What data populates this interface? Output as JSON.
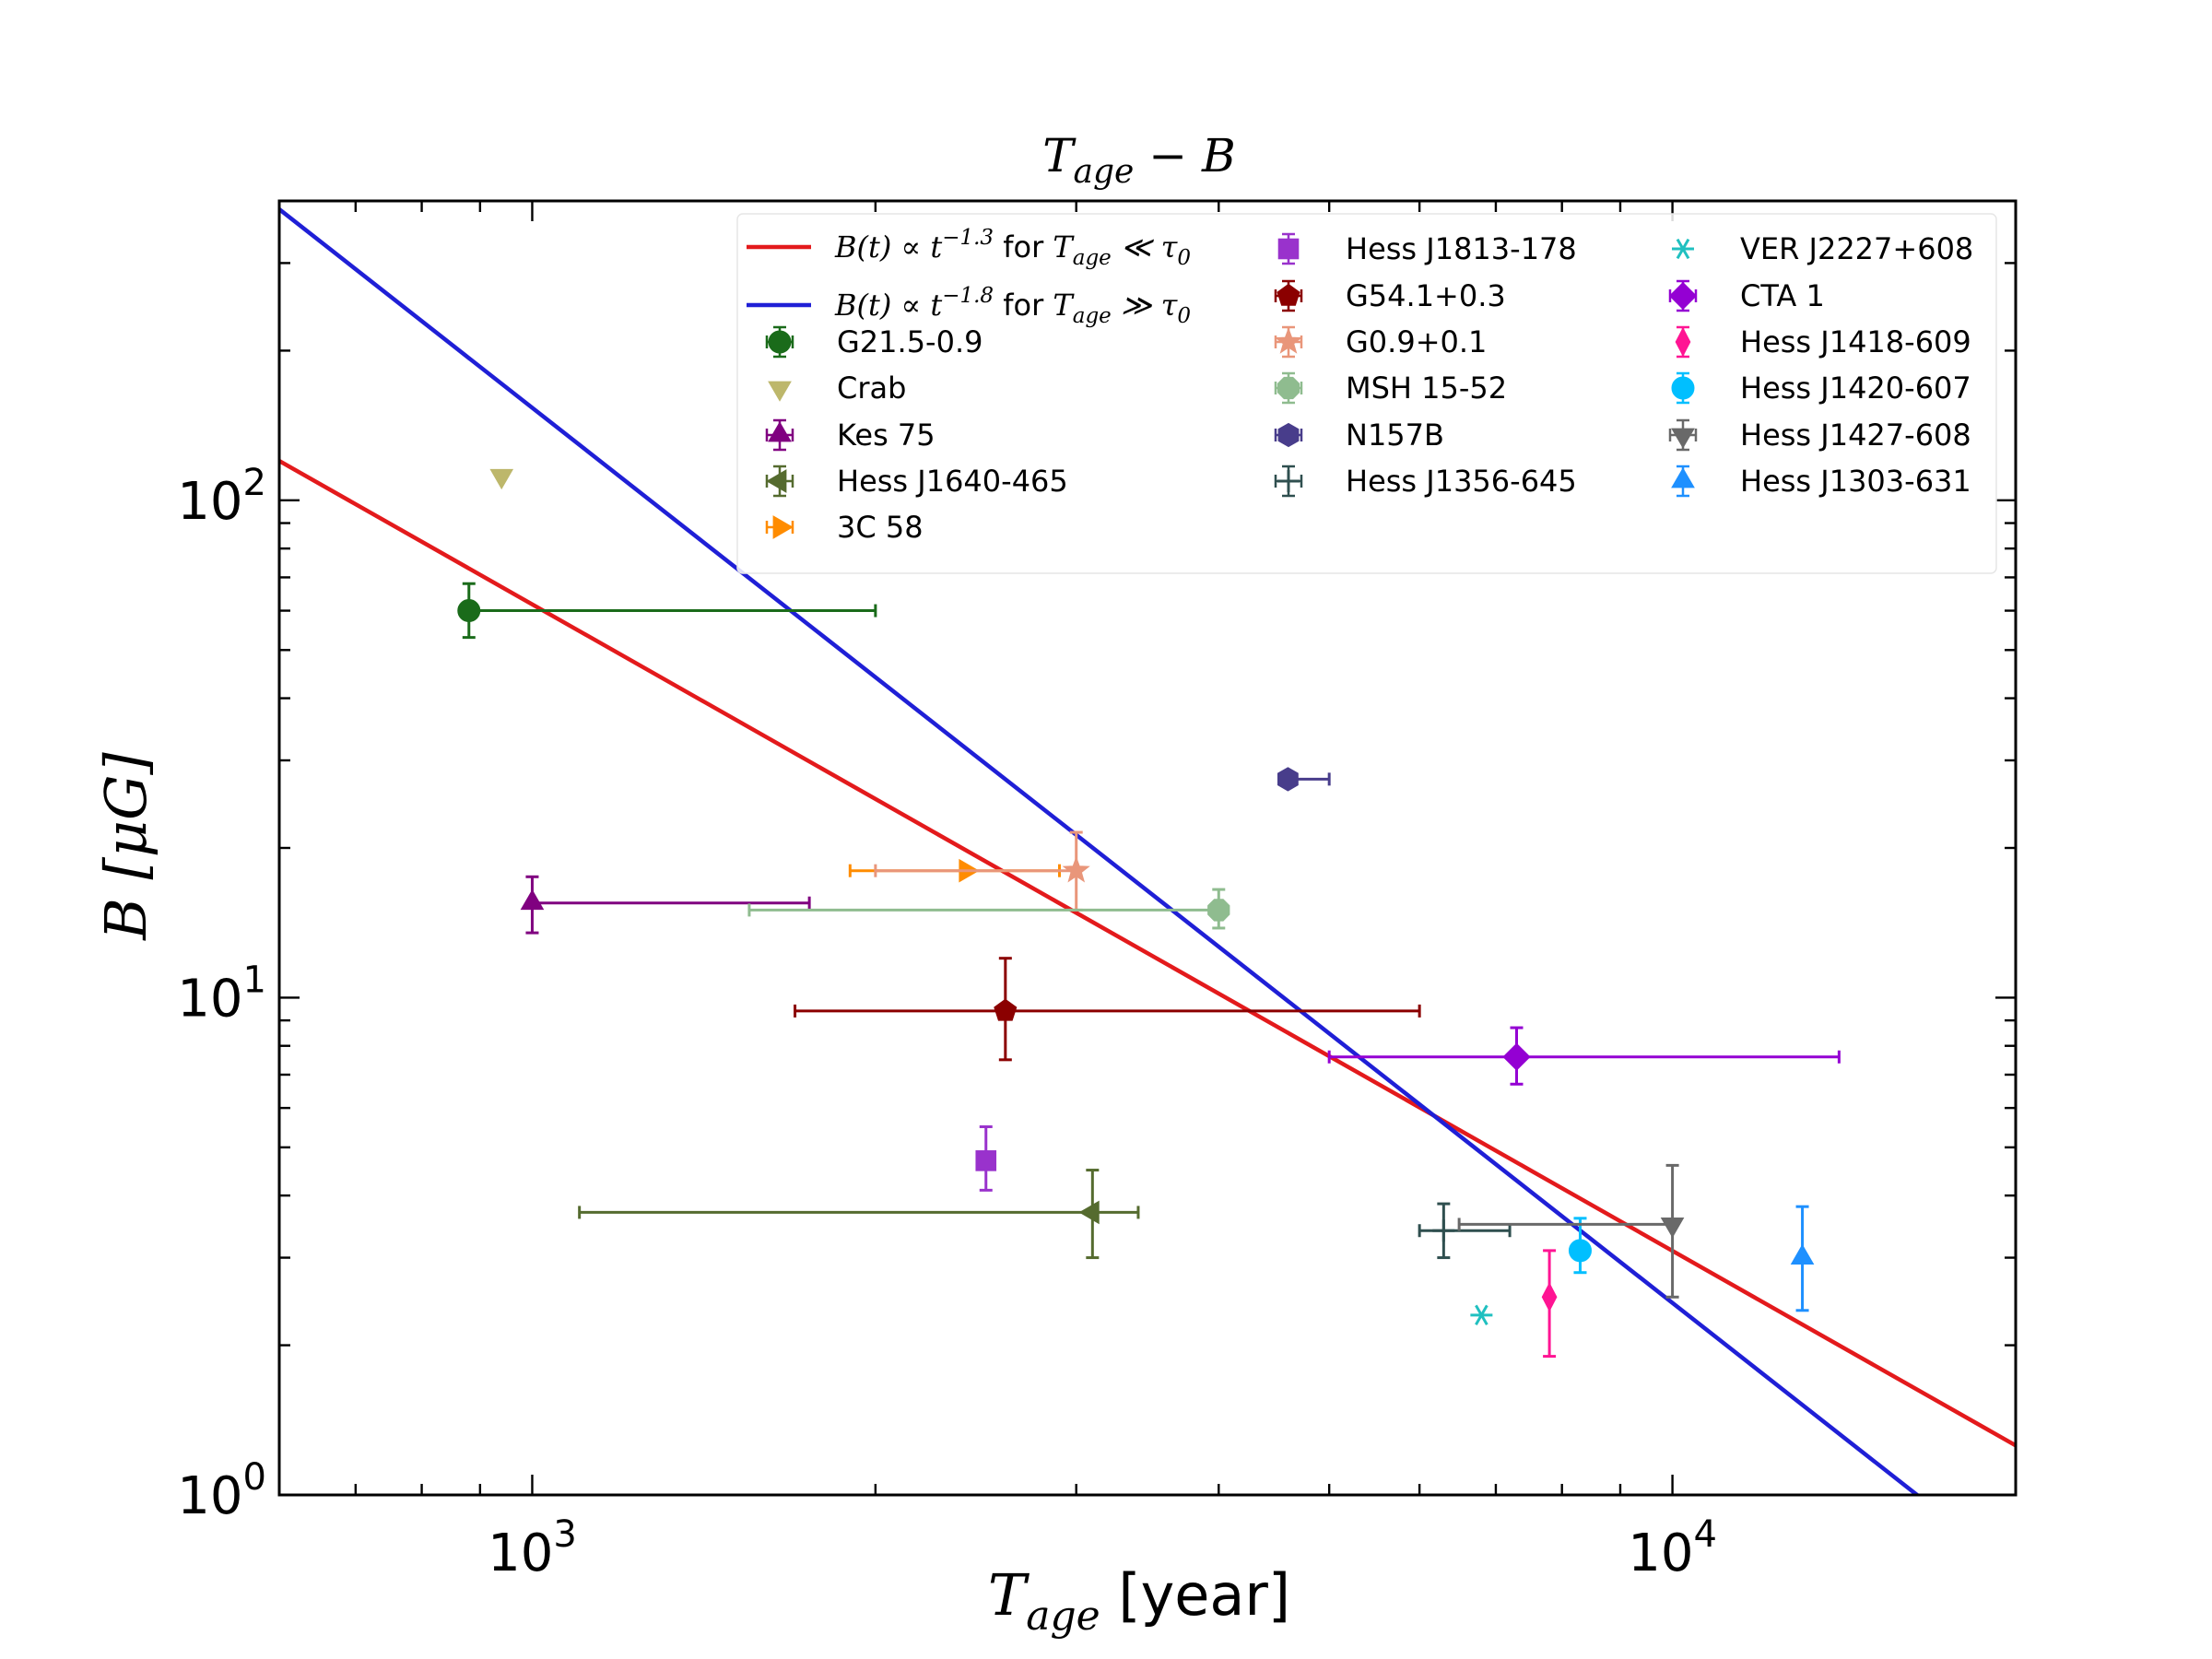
{
  "chart_data": {
    "type": "scatter",
    "title": "T_age − B",
    "title_parts": {
      "var": "T",
      "sub": "age",
      "rest": " − B"
    },
    "xlabel": "T_age [year]",
    "xlabel_parts": {
      "var": "T",
      "sub": "age",
      "rest": " [year]"
    },
    "ylabel": "B [μG]",
    "ylabel_parts": {
      "open": "B [",
      "mu": "μG",
      "close": "]"
    },
    "xscale": "log",
    "yscale": "log",
    "xlim": [
      600,
      20000
    ],
    "ylim": [
      1,
      400
    ],
    "x_ticks": [
      {
        "value": 1000,
        "base": "10",
        "exp": "3"
      },
      {
        "value": 10000,
        "base": "10",
        "exp": "4"
      }
    ],
    "y_ticks": [
      {
        "value": 1,
        "base": "10",
        "exp": "0"
      },
      {
        "value": 10,
        "base": "10",
        "exp": "1"
      },
      {
        "value": 100,
        "base": "10",
        "exp": "2"
      }
    ],
    "grid": false,
    "legend_position": "top",
    "lines": [
      {
        "name": "B(t) ∝ t^−1.3 for T_age ≪ τ0",
        "label_main": "B(t) ∝ t",
        "label_exp": "−1.3",
        "label_for": " for ",
        "label_T": "T",
        "label_sub": "age",
        "label_rel": " ≪ τ",
        "label_zero": "0",
        "color": "#e31a1c",
        "slope": -1.3,
        "anchor_x": 600,
        "anchor_y": 120
      },
      {
        "name": "B(t) ∝ t^−1.8 for T_age ≫ τ0",
        "label_main": "B(t) ∝ t",
        "label_exp": "−1.8",
        "label_for": " for ",
        "label_T": "T",
        "label_sub": "age",
        "label_rel": " ≫ τ",
        "label_zero": "0",
        "color": "#1f1fd6",
        "slope": -1.8,
        "anchor_x": 600,
        "anchor_y": 385
      }
    ],
    "series": [
      {
        "name": "G21.5-0.9",
        "color": "#1a6b1a",
        "marker": "circle",
        "x": 880,
        "y": 60,
        "xerr": [
          880,
          2000
        ],
        "yerr": [
          53,
          68
        ]
      },
      {
        "name": "Crab",
        "color": "#bdb76b",
        "marker": "triangle-down",
        "x": 940,
        "y": 112,
        "xerr": null,
        "yerr": null
      },
      {
        "name": "Kes 75",
        "color": "#800080",
        "marker": "triangle-up",
        "x": 1000,
        "y": 15.5,
        "xerr": [
          1000,
          1750
        ],
        "yerr": [
          13.5,
          17.5
        ]
      },
      {
        "name": "Hess J1640-465",
        "color": "#556b2f",
        "marker": "triangle-left",
        "x": 3100,
        "y": 3.7,
        "xerr": [
          1100,
          3400
        ],
        "yerr": [
          3.0,
          4.5
        ]
      },
      {
        "name": "3C 58",
        "color": "#ff8c00",
        "marker": "triangle-right",
        "x": 2400,
        "y": 18,
        "xerr": [
          1900,
          2900
        ],
        "yerr": null
      },
      {
        "name": "Hess J1813-178",
        "color": "#9932cc",
        "marker": "square",
        "x": 2500,
        "y": 4.7,
        "xerr": null,
        "yerr": [
          4.1,
          5.5
        ]
      },
      {
        "name": "G54.1+0.3",
        "color": "#8b0000",
        "marker": "pentagon",
        "x": 2600,
        "y": 9.4,
        "xerr": [
          1700,
          6000
        ],
        "yerr": [
          7.5,
          12
        ]
      },
      {
        "name": "G0.9+0.1",
        "color": "#e9967a",
        "marker": "star",
        "x": 3000,
        "y": 18,
        "xerr": [
          2000,
          3000
        ],
        "yerr": [
          15,
          21.5
        ]
      },
      {
        "name": "MSH 15-52",
        "color": "#8fbc8f",
        "marker": "octagon",
        "x": 4000,
        "y": 15,
        "xerr": [
          1550,
          4000
        ],
        "yerr": [
          13.8,
          16.5
        ]
      },
      {
        "name": "N157B",
        "color": "#483d8b",
        "marker": "hexagon",
        "x": 4600,
        "y": 27.5,
        "xerr": [
          4600,
          5000
        ],
        "yerr": null
      },
      {
        "name": "Hess J1356-645",
        "color": "#2f4f4f",
        "marker": "plus",
        "x": 6300,
        "y": 3.4,
        "xerr": [
          6000,
          7200
        ],
        "yerr": [
          3.0,
          3.85
        ]
      },
      {
        "name": "VER J2227+608",
        "color": "#20c0c0",
        "marker": "asterisk",
        "x": 6800,
        "y": 2.3,
        "xerr": null,
        "yerr": null
      },
      {
        "name": "CTA 1",
        "color": "#9400d3",
        "marker": "diamond",
        "x": 7300,
        "y": 7.6,
        "xerr": [
          5000,
          14000
        ],
        "yerr": [
          6.7,
          8.7
        ]
      },
      {
        "name": "Hess J1418-609",
        "color": "#ff1493",
        "marker": "thin-diamond",
        "x": 7800,
        "y": 2.5,
        "xerr": null,
        "yerr": [
          1.9,
          3.1
        ]
      },
      {
        "name": "Hess J1420-607",
        "color": "#00bfff",
        "marker": "circle",
        "x": 8300,
        "y": 3.1,
        "xerr": null,
        "yerr": [
          2.8,
          3.6
        ]
      },
      {
        "name": "Hess J1427-608",
        "color": "#696969",
        "marker": "triangle-down",
        "x": 10000,
        "y": 3.5,
        "xerr": [
          6500,
          10000
        ],
        "yerr": [
          2.5,
          4.6
        ]
      },
      {
        "name": "Hess J1303-631",
        "color": "#1e90ff",
        "marker": "triangle-up",
        "x": 13000,
        "y": 3.0,
        "xerr": null,
        "yerr": [
          2.35,
          3.8
        ]
      }
    ]
  }
}
